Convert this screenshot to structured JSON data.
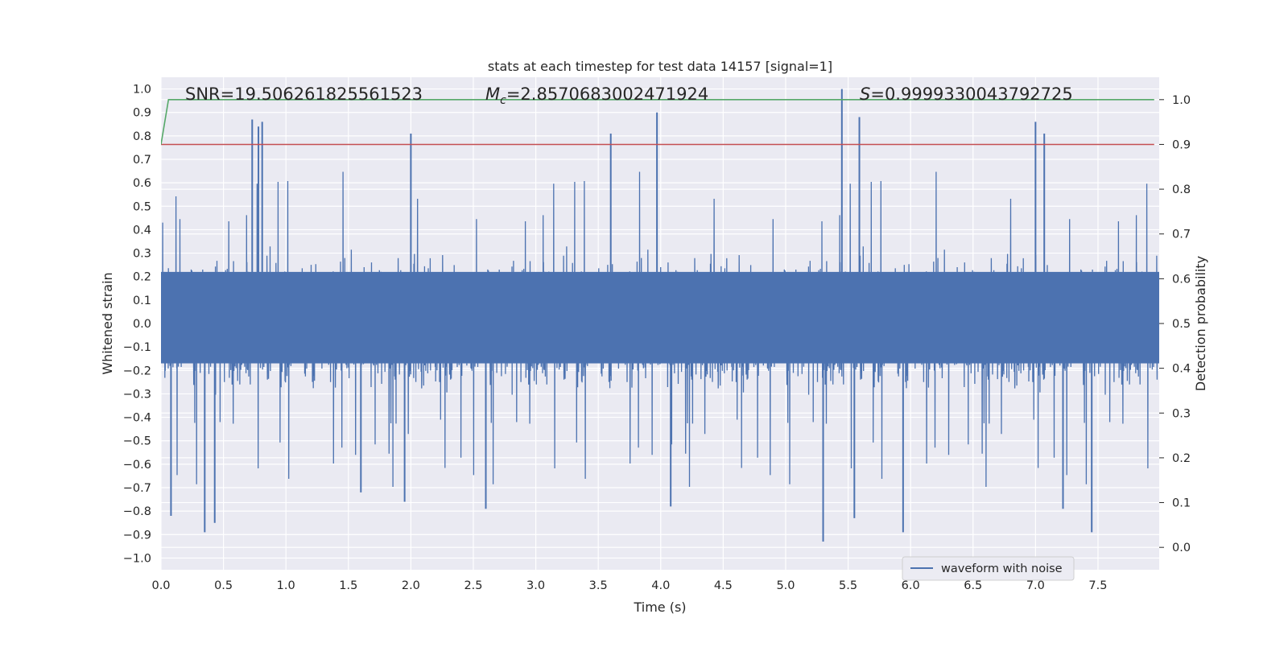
{
  "chart_data": {
    "type": "line",
    "title": "stats at each timestep for test data 14157 [signal=1]",
    "xlabel": "Time (s)",
    "ylabel": "Whitened strain",
    "ylabel_right": "Detection probability",
    "xlim": [
      0.0,
      7.99
    ],
    "ylim": [
      -1.05,
      1.05
    ],
    "ylim_right": [
      -0.05,
      1.05
    ],
    "x_ticks": [
      0.0,
      0.5,
      1.0,
      1.5,
      2.0,
      2.5,
      3.0,
      3.5,
      4.0,
      4.5,
      5.0,
      5.5,
      6.0,
      6.5,
      7.0,
      7.5
    ],
    "x_tick_labels": [
      "0.0",
      "0.5",
      "1.0",
      "1.5",
      "2.0",
      "2.5",
      "3.0",
      "3.5",
      "4.0",
      "4.5",
      "5.0",
      "5.5",
      "6.0",
      "6.5",
      "7.0",
      "7.5"
    ],
    "y_ticks": [
      1.0,
      0.9,
      0.8,
      0.7,
      0.6,
      0.5,
      0.4,
      0.3,
      0.2,
      0.1,
      0.0,
      -0.1,
      -0.2,
      -0.3,
      -0.4,
      -0.5,
      -0.6,
      -0.7,
      -0.8,
      -0.9,
      -1.0
    ],
    "y_tick_labels": [
      "1.0",
      "0.9",
      "0.8",
      "0.7",
      "0.6",
      "0.5",
      "0.4",
      "0.3",
      "0.2",
      "0.1",
      "0.0",
      "−0.1",
      "−0.2",
      "−0.3",
      "−0.4",
      "−0.5",
      "−0.6",
      "−0.7",
      "−0.8",
      "−0.9",
      "−1.0"
    ],
    "y_right_ticks": [
      1.0,
      0.9,
      0.8,
      0.7,
      0.6,
      0.5,
      0.4,
      0.3,
      0.2,
      0.1,
      0.0
    ],
    "y_right_tick_labels": [
      "1.0",
      "0.9",
      "0.8",
      "0.7",
      "0.6",
      "0.5",
      "0.4",
      "0.3",
      "0.2",
      "0.1",
      "0.0"
    ],
    "grid": true,
    "legend_position": "lower-right",
    "annotations": {
      "snr": "SNR=19.506261825561523",
      "mc_symbol": "M",
      "mc_subscript": "c",
      "mc_value": "=2.8570683002471924",
      "s_symbol": "S",
      "s_value": "=0.9999330043792725"
    },
    "series": [
      {
        "name": "waveform with noise",
        "axis": "left",
        "color": "#4c72b0",
        "description": "dense whitened strain noise spanning roughly -0.93 to 1.0",
        "sample_rate_hz": 2048,
        "typical_envelope": [
          -0.4,
          0.4
        ],
        "peaks": [
          {
            "x": 0.73,
            "y": 0.87
          },
          {
            "x": 0.78,
            "y": 0.84
          },
          {
            "x": 0.81,
            "y": 0.86
          },
          {
            "x": 2.0,
            "y": 0.81
          },
          {
            "x": 3.6,
            "y": 0.81
          },
          {
            "x": 3.97,
            "y": 0.9
          },
          {
            "x": 5.45,
            "y": 1.0
          },
          {
            "x": 5.59,
            "y": 0.88
          },
          {
            "x": 7.0,
            "y": 0.86
          },
          {
            "x": 7.07,
            "y": 0.81
          },
          {
            "x": 0.35,
            "y": -0.89
          },
          {
            "x": 0.43,
            "y": -0.85
          },
          {
            "x": 0.08,
            "y": -0.82
          },
          {
            "x": 1.6,
            "y": -0.72
          },
          {
            "x": 1.95,
            "y": -0.76
          },
          {
            "x": 2.6,
            "y": -0.79
          },
          {
            "x": 4.08,
            "y": -0.78
          },
          {
            "x": 5.3,
            "y": -0.93
          },
          {
            "x": 5.55,
            "y": -0.83
          },
          {
            "x": 5.94,
            "y": -0.89
          },
          {
            "x": 7.22,
            "y": -0.79
          },
          {
            "x": 7.45,
            "y": -0.89
          }
        ]
      },
      {
        "name": "",
        "axis": "right",
        "color": "#55a868",
        "x": [
          0.0,
          0.06,
          7.95
        ],
        "y": [
          0.9,
          1.0,
          1.0
        ]
      },
      {
        "name": "",
        "axis": "right",
        "color": "#c44e52",
        "x": [
          0.0,
          7.95
        ],
        "y": [
          0.9,
          0.9
        ]
      }
    ],
    "colors": {
      "background": "#eaeaf2",
      "grid": "#ffffff",
      "waveform": "#4c72b0",
      "probability": "#55a868",
      "threshold": "#c44e52"
    }
  }
}
